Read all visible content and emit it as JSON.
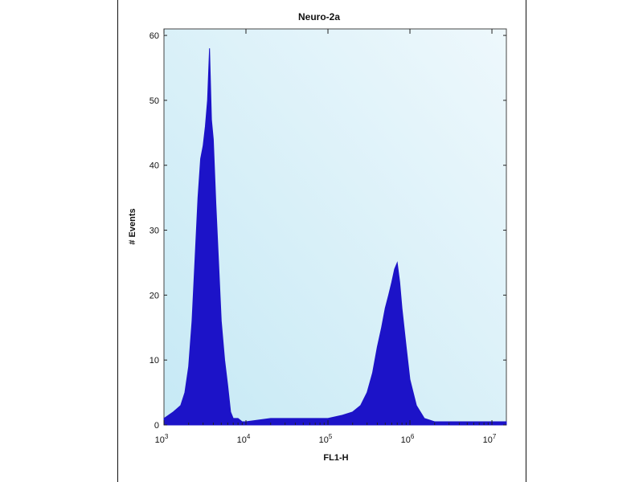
{
  "chart_data": {
    "type": "area",
    "title": "Neuro-2a",
    "xlabel": "FL1-H",
    "ylabel": "# Events",
    "x_scale": "log",
    "xlim": [
      1000,
      15000000
    ],
    "ylim": [
      0,
      61
    ],
    "x_ticks": [
      {
        "value": 1000,
        "base": "10",
        "exp": "3"
      },
      {
        "value": 10000,
        "base": "10",
        "exp": "4"
      },
      {
        "value": 100000,
        "base": "10",
        "exp": "5"
      },
      {
        "value": 1000000,
        "base": "10",
        "exp": "6"
      },
      {
        "value": 10000000,
        "base": "10",
        "exp": "7"
      }
    ],
    "y_ticks": [
      0,
      10,
      20,
      30,
      40,
      50,
      60
    ],
    "colors": {
      "fill": "#1c13c8",
      "plot_background": "#c6e9f5",
      "plot_background_light": "#eef8fc"
    },
    "series": [
      {
        "x": [
          1000,
          1300,
          1600,
          1800,
          2000,
          2200,
          2400,
          2600,
          2800,
          3000,
          3200,
          3400,
          3600,
          3800,
          4000,
          4300,
          4600,
          5000,
          5500,
          6000,
          6500,
          7000,
          8000,
          9000,
          10000,
          20000,
          50000,
          100000,
          150000,
          200000,
          250000,
          300000,
          350000,
          400000,
          450000,
          500000,
          550000,
          600000,
          650000,
          700000,
          750000,
          800000,
          900000,
          1000000,
          1200000,
          1500000,
          2000000,
          3000000,
          5000000,
          10000000,
          15000000
        ],
        "y": [
          1,
          2,
          3,
          5,
          9,
          16,
          26,
          35,
          41,
          43,
          46,
          50,
          58,
          47,
          44,
          34,
          26,
          16,
          10,
          6,
          2,
          1,
          1,
          0.5,
          0.5,
          1,
          1,
          1,
          1.5,
          2,
          3,
          5,
          8,
          12,
          15,
          18,
          20,
          22,
          24,
          25,
          22,
          18,
          12,
          7,
          3,
          1,
          0.5,
          0.5,
          0.5,
          0.5,
          0.5
        ]
      }
    ]
  }
}
